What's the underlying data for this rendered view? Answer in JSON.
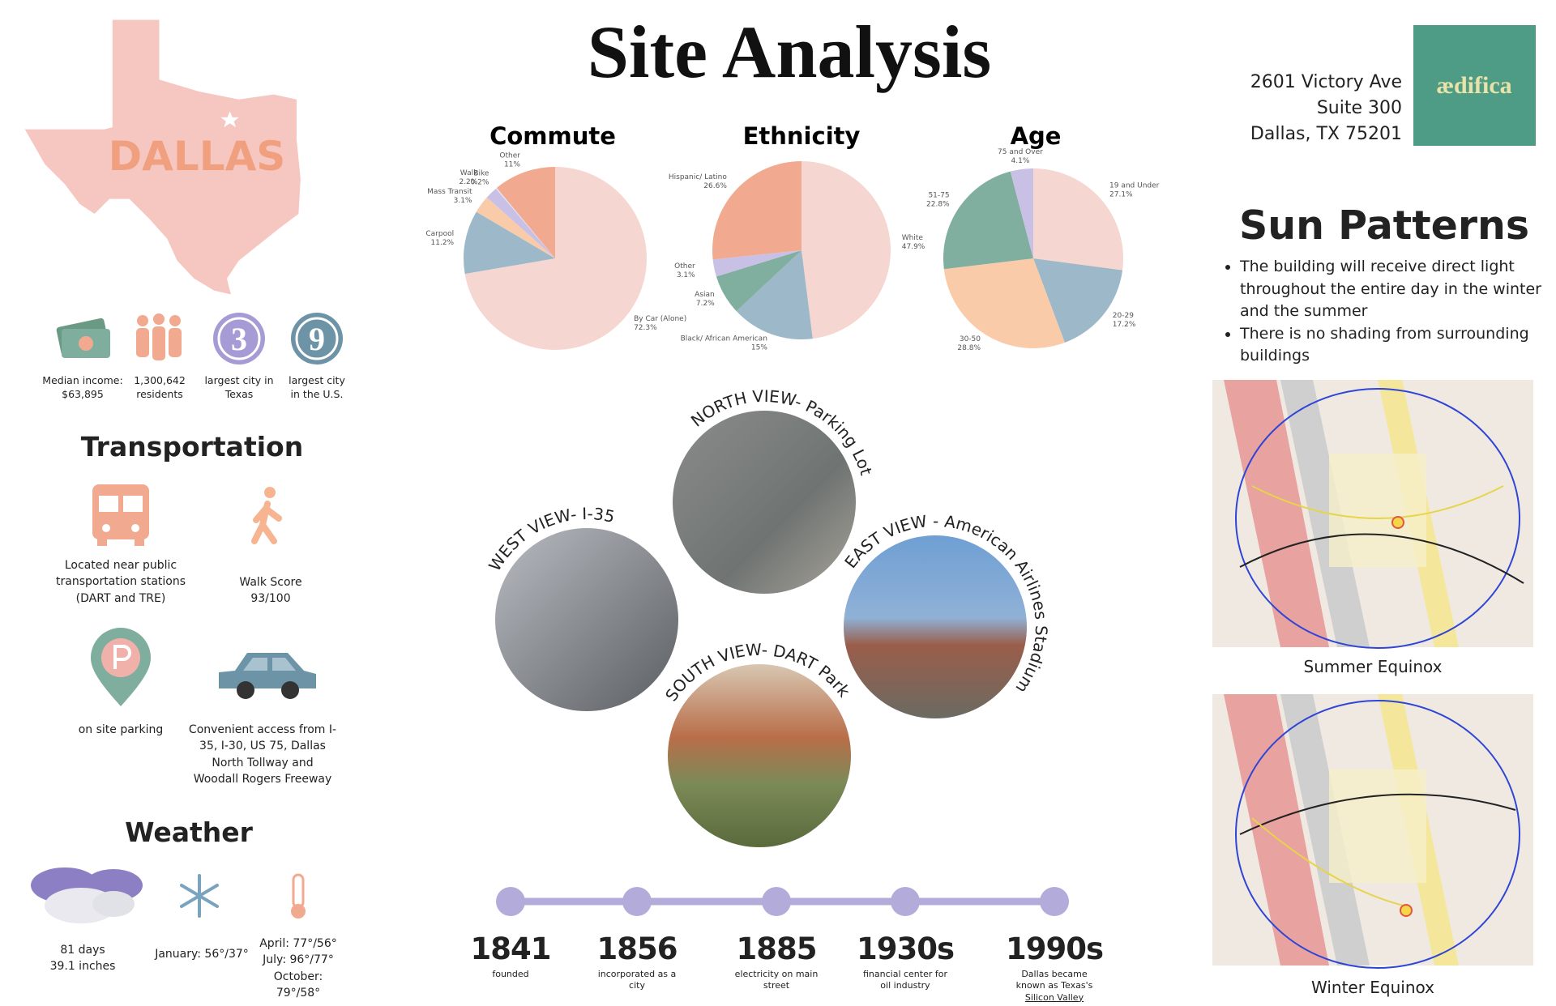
{
  "header": {
    "title": "Site Analysis",
    "address": [
      "2601 Victory Ave",
      "Suite 300",
      "Dallas, TX 75201"
    ],
    "logo": "ædifica"
  },
  "city": {
    "name": "DALLAS",
    "stats": [
      {
        "text": "Median income: $63,895"
      },
      {
        "text": "1,300,642 residents"
      },
      {
        "badge": "3",
        "text": "largest city in Texas"
      },
      {
        "badge": "9",
        "text": "largest city in the U.S."
      }
    ]
  },
  "transportation": {
    "title": "Transportation",
    "items": [
      "Located near public transportation stations (DART and TRE)",
      "Walk Score 93/100",
      "on site parking",
      "Convenient access from I-35, I-30, US 75, Dallas North Tollway and Woodall Rogers Freeway"
    ]
  },
  "weather": {
    "title": "Weather",
    "items": [
      "81 days 39.1 inches",
      "January: 56°/37°",
      "April: 77°/56° July: 96°/77° October: 79°/58°"
    ]
  },
  "chart_data": [
    {
      "type": "pie",
      "title": "Commute",
      "categories": [
        "By Car (Alone)",
        "Carpool",
        "Mass Transit",
        "Walk",
        "Bike",
        "Other"
      ],
      "values": [
        72.3,
        11.2,
        3.1,
        2.2,
        0.2,
        11
      ],
      "value_labels": [
        "72.3%",
        "11.2%",
        "3.1%",
        "2.2%",
        "0.2%",
        "11%"
      ],
      "colors": [
        "#f6d6d1",
        "#9db8c8",
        "#f9cba9",
        "#c9c1e5",
        "#e6e0f0",
        "#f1aa90"
      ]
    },
    {
      "type": "pie",
      "title": "Ethnicity",
      "categories": [
        "White",
        "Black/ African American",
        "Asian",
        "Other",
        "Hispanic/ Latino"
      ],
      "values": [
        47.9,
        15,
        7.2,
        3.1,
        26.6
      ],
      "value_labels": [
        "47.9%",
        "15%",
        "7.2%",
        "3.1%",
        "26.6%"
      ],
      "colors": [
        "#f6d6d1",
        "#9db8c8",
        "#80ae9f",
        "#c9c1e5",
        "#f1aa90"
      ]
    },
    {
      "type": "pie",
      "title": "Age",
      "categories": [
        "19 and Under",
        "20-29",
        "30-50",
        "51-75",
        "75 and Over"
      ],
      "values": [
        27.1,
        17.2,
        28.8,
        22.8,
        4.1
      ],
      "value_labels": [
        "27.1%",
        "17.2%",
        "28.8%",
        "22.8%",
        "4.1%"
      ],
      "colors": [
        "#f6d6d1",
        "#9db8c8",
        "#f9cba9",
        "#80ae9f",
        "#c9c1e5"
      ]
    }
  ],
  "views": [
    "NORTH VIEW- Parking Lot",
    "WEST VIEW- I-35",
    "EAST VIEW - American Airlines Stadium",
    "SOUTH VIEW- DART Park"
  ],
  "timeline": [
    {
      "year": "1841",
      "caption": "founded"
    },
    {
      "year": "1856",
      "caption": "incorporated as a city"
    },
    {
      "year": "1885",
      "caption": "electricity on main street"
    },
    {
      "year": "1930s",
      "caption": "financial center for oil industry"
    },
    {
      "year": "1990s",
      "caption": "Dallas became known as Texas's",
      "link": "Silicon Valley"
    }
  ],
  "sun_patterns": {
    "title": "Sun Patterns",
    "bullets": [
      "The building will receive direct light throughout the entire day in the winter and the summer",
      "There is no shading from surrounding buildings"
    ],
    "maps": [
      "Summer Equinox",
      "Winter Equinox"
    ]
  }
}
